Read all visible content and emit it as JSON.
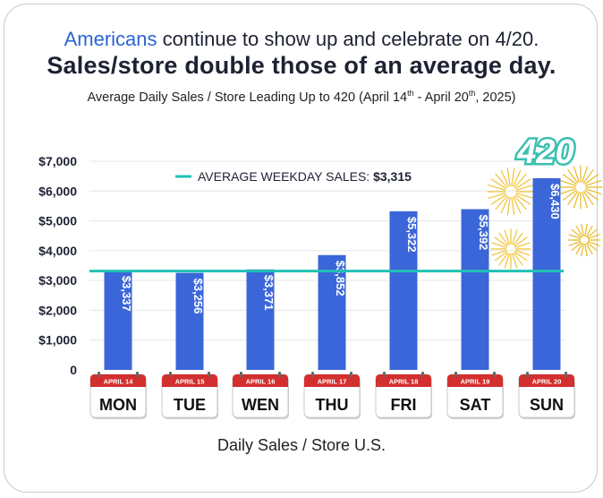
{
  "header": {
    "line1_accent": "Americans",
    "line1_rest": " continue to show up and celebrate on 4/20.",
    "line2": "Sales/store double those of an average day.",
    "line3_a": "Average Daily Sales / Store Leading Up to 420 (April 14",
    "line3_sup1": "th",
    "line3_b": " - April 20",
    "line3_sup2": "th",
    "line3_c": ", 2025)"
  },
  "badge": {
    "text": "420"
  },
  "colors": {
    "bar": "#3a66d9",
    "average_line": "#22c1b4",
    "calendar_red": "#d32f2f",
    "accent_blue": "#2c63d6",
    "badge_teal": "#3bbfb0"
  },
  "chart_data": {
    "type": "bar",
    "categories": [
      "MON",
      "TUE",
      "WEN",
      "THU",
      "FRI",
      "SAT",
      "SUN"
    ],
    "dates": [
      "APRIL 14",
      "APRIL 15",
      "APRIL 16",
      "APRIL 17",
      "APRIL 18",
      "APRIL 19",
      "APRIL 20"
    ],
    "values": [
      3337,
      3256,
      3371,
      3852,
      5322,
      5392,
      6430
    ],
    "value_labels": [
      "$3,337",
      "$3,256",
      "$3,371",
      "$3,852",
      "$5,322",
      "$5,392",
      "$6,430"
    ],
    "ylim": [
      0,
      7000
    ],
    "yticks": [
      0,
      1000,
      2000,
      3000,
      4000,
      5000,
      6000,
      7000
    ],
    "ytick_labels": [
      "0",
      "$1,000",
      "$2,000",
      "$3,000",
      "$4,000",
      "$5,000",
      "$6,000",
      "$7,000"
    ],
    "grid": true,
    "reference_line": {
      "label": "AVERAGE WEEKDAY SALES: ",
      "value_label": "$3,315",
      "value": 3315
    },
    "xlabel": "Daily Sales / Store U.S."
  }
}
